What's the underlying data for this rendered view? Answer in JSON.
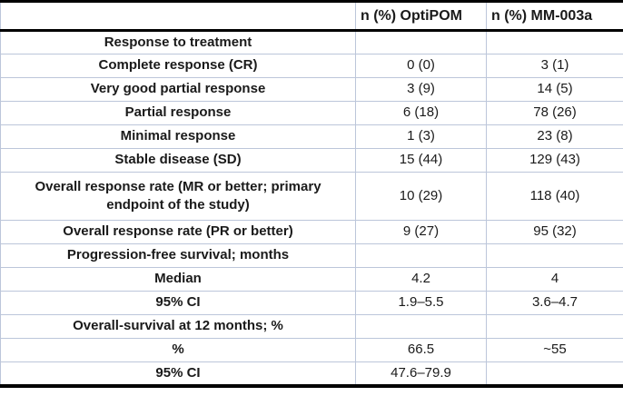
{
  "table": {
    "header": {
      "label_col": "",
      "optipom_col": "n (%) OptiPOM",
      "mm003_col": "n (%) MM-003a"
    },
    "rows": [
      {
        "label": "Response to treatment",
        "optipom": "",
        "mm003": ""
      },
      {
        "label": "Complete response (CR)",
        "optipom": "0 (0)",
        "mm003": "3 (1)"
      },
      {
        "label": "Very good partial response",
        "optipom": "3 (9)",
        "mm003": "14 (5)"
      },
      {
        "label": "Partial response",
        "optipom": "6 (18)",
        "mm003": "78 (26)"
      },
      {
        "label": "Minimal response",
        "optipom": "1 (3)",
        "mm003": "23 (8)"
      },
      {
        "label": "Stable disease (SD)",
        "optipom": "15 (44)",
        "mm003": "129 (43)"
      },
      {
        "label": "Overall response rate (MR or better; primary endpoint of the study)",
        "optipom": "10 (29)",
        "mm003": "118 (40)"
      },
      {
        "label": "Overall response rate (PR or better)",
        "optipom": "9 (27)",
        "mm003": "95 (32)"
      },
      {
        "label": "Progression-free survival; months",
        "optipom": "",
        "mm003": ""
      },
      {
        "label": "Median",
        "optipom": "4.2",
        "mm003": "4"
      },
      {
        "label": "95% CI",
        "optipom": "1.9–5.5",
        "mm003": "3.6–4.7"
      },
      {
        "label": "Overall-survival at 12 months; %",
        "optipom": "",
        "mm003": ""
      },
      {
        "label": "%",
        "optipom": "66.5",
        "mm003": "~55"
      },
      {
        "label": "95% CI",
        "optipom": "47.6–79.9",
        "mm003": ""
      }
    ]
  },
  "colors": {
    "grid_line": "#bcc6da",
    "frame_border": "#000000",
    "text": "#1a1a1a",
    "background": "#ffffff"
  }
}
